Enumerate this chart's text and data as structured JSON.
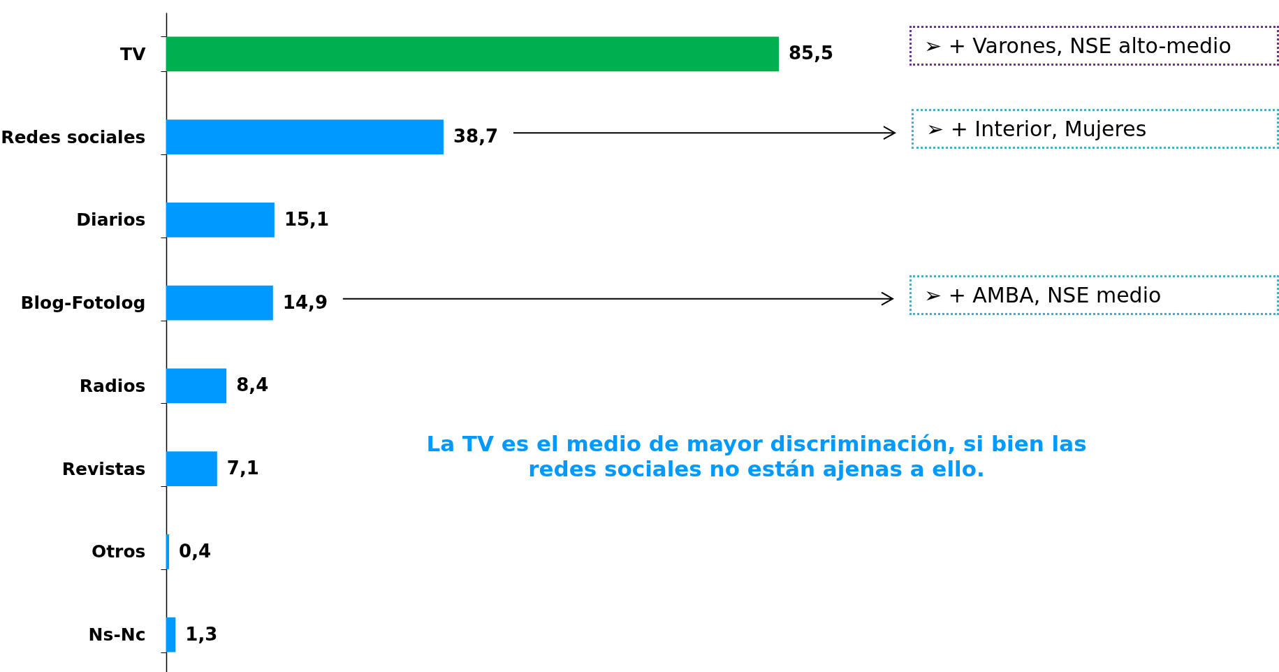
{
  "chart_data": {
    "type": "bar",
    "orientation": "horizontal",
    "categories": [
      "TV",
      "Redes sociales",
      "Diarios",
      "Blog-Fotolog",
      "Radios",
      "Revistas",
      "Otros",
      "Ns-Nc"
    ],
    "values": [
      85.5,
      38.7,
      15.1,
      14.9,
      8.4,
      7.1,
      0.4,
      1.3
    ],
    "colors": [
      "#00b050",
      "#0099ff",
      "#0099ff",
      "#0099ff",
      "#0099ff",
      "#0099ff",
      "#0099ff",
      "#0099ff"
    ],
    "value_labels": [
      "85,5",
      "38,7",
      "15,1",
      "14,9",
      "8,4",
      "7,1",
      "0,4",
      "1,3"
    ],
    "annotations": [
      "➢ + Varones, NSE alto-medio",
      "➢ + Interior, Mujeres",
      "➢ + AMBA, NSE medio",
      "La TV es el medio de mayor discriminación, si bien las redes sociales no están ajenas  a ello."
    ]
  }
}
